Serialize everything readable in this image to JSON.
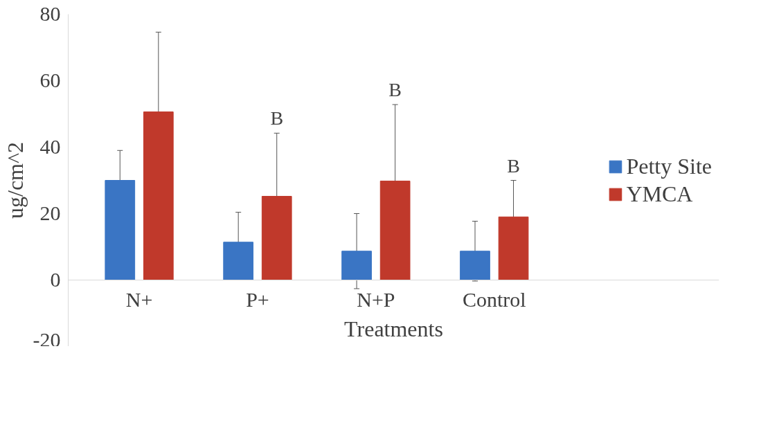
{
  "chart_data": {
    "type": "bar",
    "ylabel": "ug/cm^2",
    "xlabel": "Treatments",
    "categories": [
      "N+",
      "P+",
      "N+P",
      "Control"
    ],
    "series": [
      {
        "name": "Petty Site",
        "color": "#3a75c4",
        "values": [
          30,
          11.4,
          8.7,
          8.7
        ],
        "errors": [
          9,
          9,
          11.3,
          9
        ]
      },
      {
        "name": "YMCA",
        "color": "#c0392b",
        "values": [
          50.6,
          25.2,
          29.8,
          19
        ],
        "errors": [
          24,
          19,
          23,
          11
        ]
      }
    ],
    "ylim": [
      -20,
      80
    ],
    "yticks": [
      -20,
      0,
      20,
      40,
      60,
      80
    ],
    "grid": false,
    "legend": "right",
    "annotations": [
      "B",
      "B",
      "B"
    ]
  }
}
